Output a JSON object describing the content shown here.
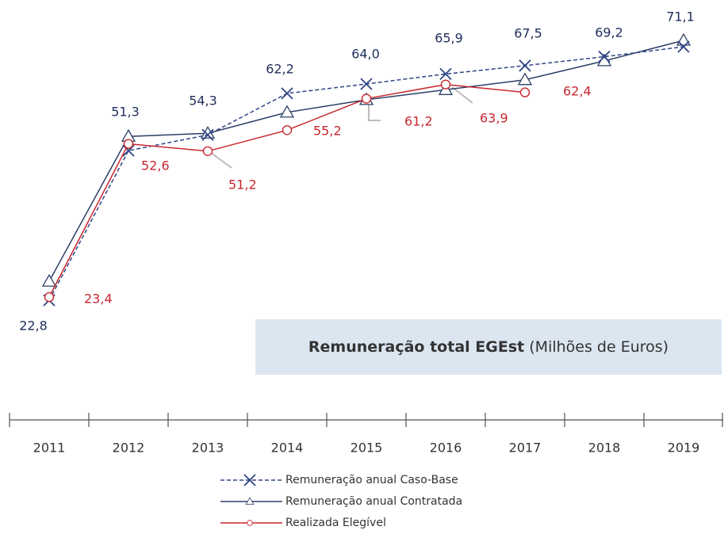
{
  "chart_data": {
    "type": "line",
    "title": "Remuneração total EGEst",
    "subtitle": "(Milhões de Euros)",
    "categories": [
      "2011",
      "2012",
      "2013",
      "2014",
      "2015",
      "2016",
      "2017",
      "2018",
      "2019"
    ],
    "ylim": [
      0,
      80
    ],
    "series": [
      {
        "name": "Remuneração anual Caso-Base",
        "color": "#2f4585",
        "dash": true,
        "marker": "x",
        "values": [
          22.8,
          51.3,
          54.3,
          62.2,
          64.0,
          65.9,
          67.5,
          69.2,
          71.1
        ],
        "value_labels": [
          "22,8",
          "51,3",
          "54,3",
          "62,2",
          "64,0",
          "65,9",
          "67,5",
          "69,2",
          "71,1"
        ]
      },
      {
        "name": "Remuneração anual Contratada",
        "color": "#2b3f66",
        "dash": false,
        "marker": "triangle",
        "values": [
          26.4,
          54.0,
          54.6,
          58.6,
          61.0,
          62.9,
          64.8,
          68.4,
          72.3
        ]
      },
      {
        "name": "Realizada Elegível",
        "color": "#c8262e",
        "dash": false,
        "marker": "circle",
        "values": [
          23.4,
          52.6,
          51.2,
          55.2,
          61.2,
          63.9,
          62.4,
          null,
          null
        ],
        "value_labels": [
          "23,4",
          "52,6",
          "51,2",
          "55,2",
          "61,2",
          "63,9",
          "62,4",
          null,
          null
        ]
      }
    ]
  }
}
